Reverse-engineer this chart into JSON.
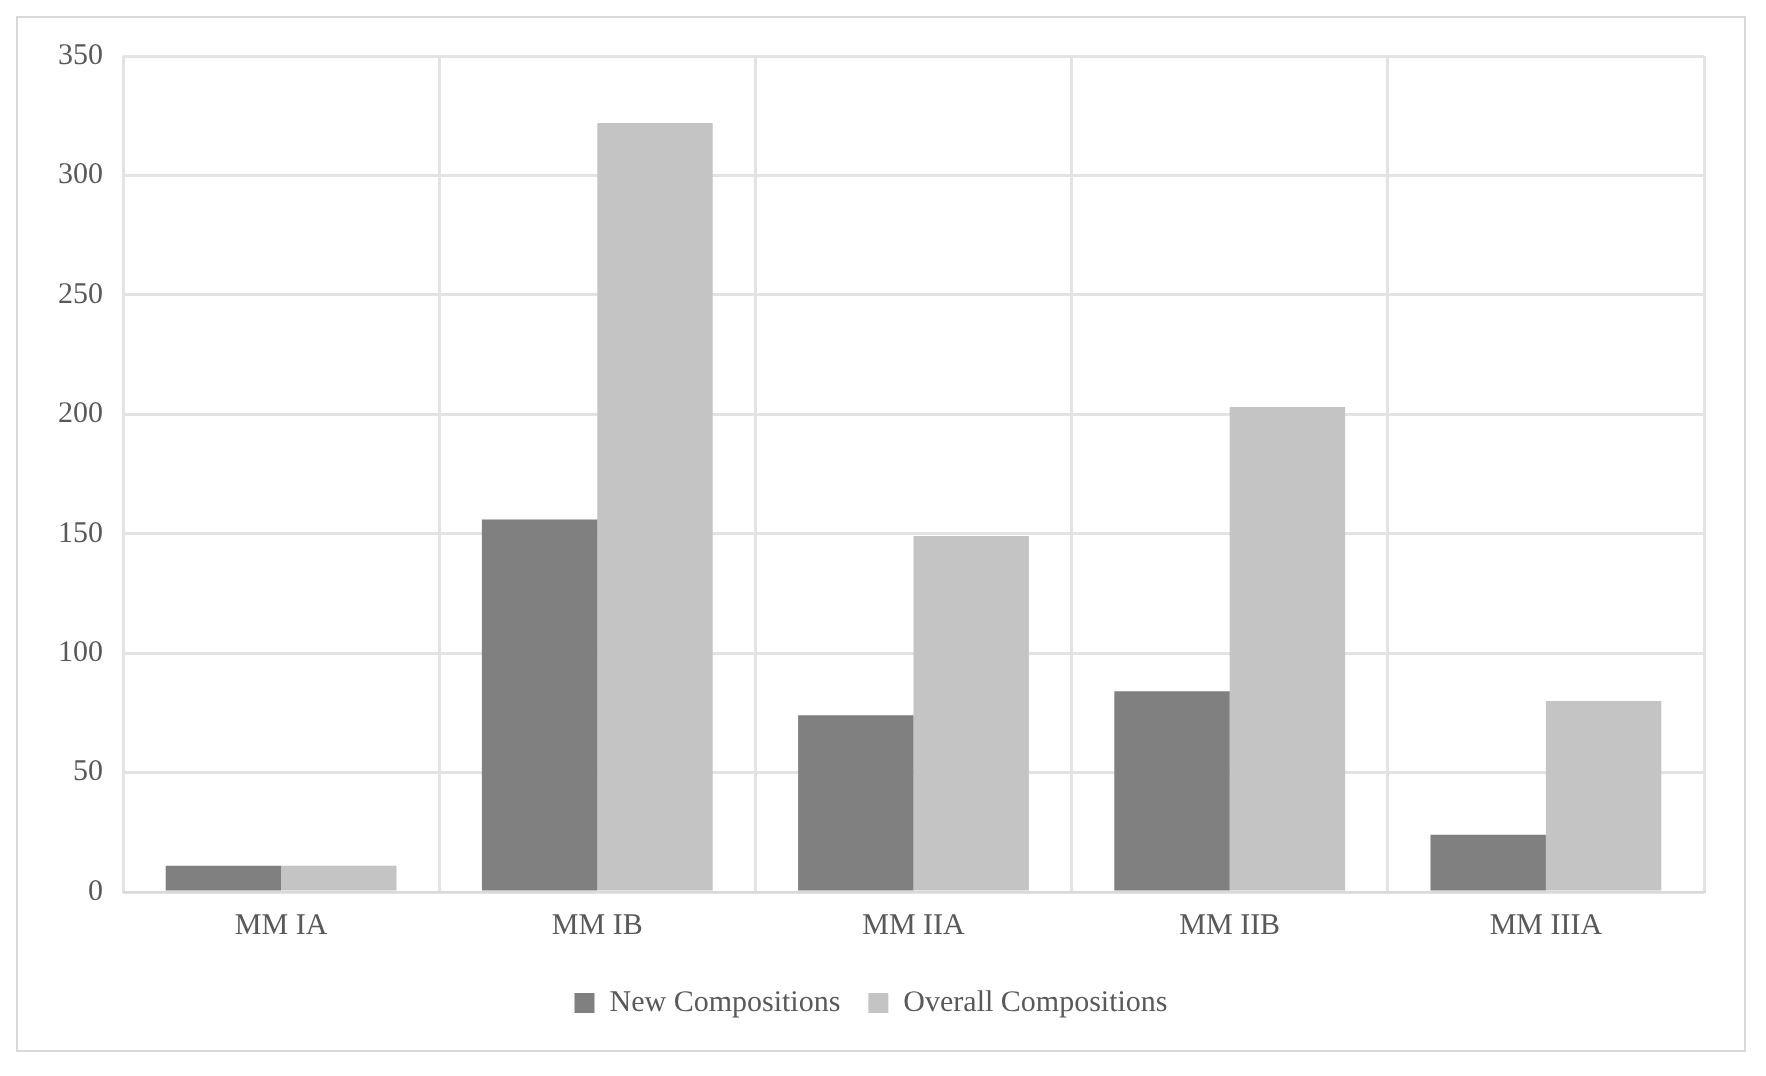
{
  "chart_data": {
    "type": "bar",
    "categories": [
      "MM IA",
      "MM IB",
      "MM IIA",
      "MM IIB",
      "MM IIIA"
    ],
    "series": [
      {
        "name": "New Compositions",
        "color": "#808080",
        "values": [
          11,
          156,
          74,
          84,
          24
        ]
      },
      {
        "name": "Overall Compositions",
        "color": "#c4c4c4",
        "values": [
          11,
          322,
          149,
          203,
          80
        ]
      }
    ],
    "ylim": [
      0,
      350
    ],
    "yticks": [
      0,
      50,
      100,
      150,
      200,
      250,
      300,
      350
    ],
    "grid": true,
    "legend": "bottom"
  }
}
